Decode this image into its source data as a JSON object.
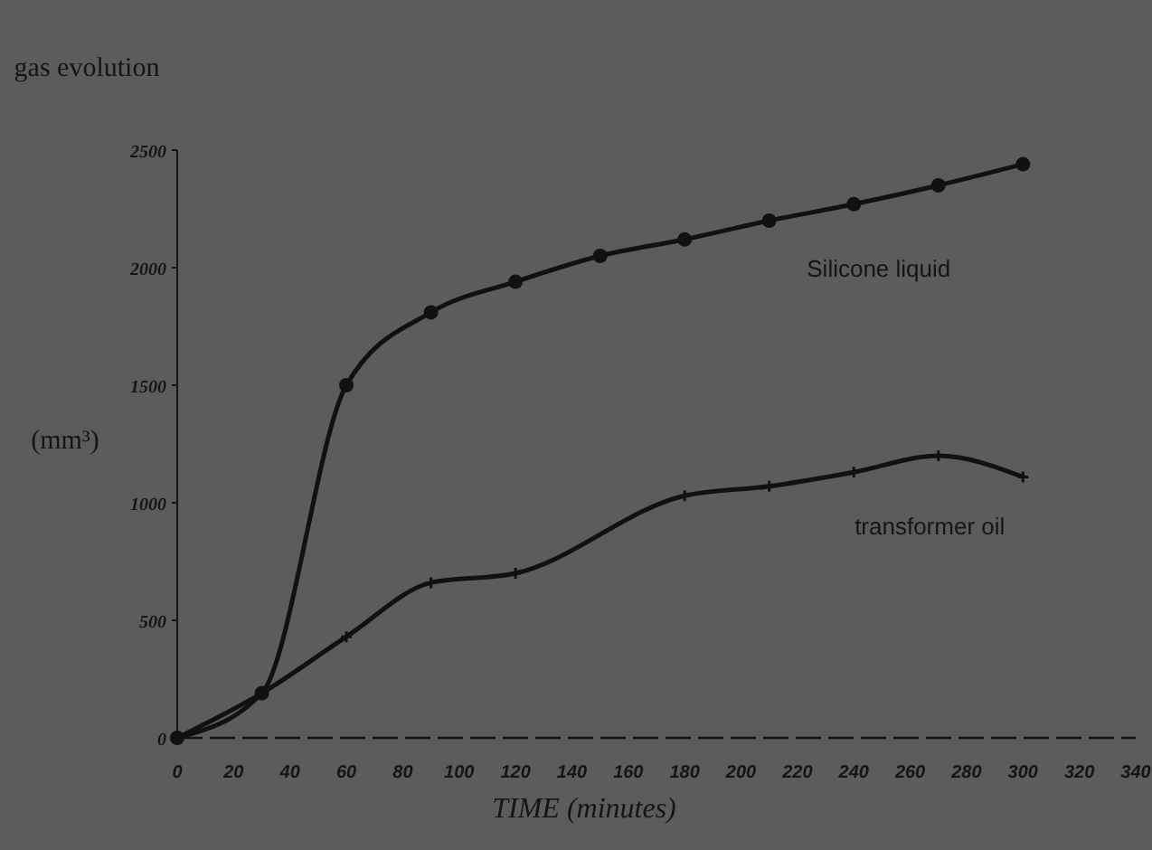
{
  "chart_data": {
    "type": "line",
    "xlabel": "TIME (minutes)",
    "ylabel": "gas evolution",
    "annotations": [
      "(mm³)"
    ],
    "x": [
      0,
      30,
      60,
      90,
      120,
      150,
      180,
      210,
      240,
      270,
      300
    ],
    "xlim": [
      0,
      340
    ],
    "xticks": [
      0,
      20,
      40,
      60,
      80,
      100,
      120,
      140,
      160,
      180,
      200,
      220,
      240,
      260,
      280,
      300,
      320,
      340
    ],
    "ylim": [
      0,
      2500
    ],
    "yticks": [
      0,
      500,
      1000,
      1500,
      2000,
      2500
    ],
    "grid": false,
    "series": [
      {
        "name": "Silicone liquid",
        "color": "#111111",
        "marker": "circle",
        "values": [
          0,
          190,
          1500,
          1810,
          1940,
          2050,
          2120,
          2200,
          2270,
          2350,
          2440
        ]
      },
      {
        "name": "transformer oil",
        "color": "#111111",
        "marker": "cross",
        "values": [
          0,
          190,
          430,
          660,
          700,
          null,
          1030,
          1070,
          1130,
          1200,
          1110
        ]
      }
    ]
  }
}
